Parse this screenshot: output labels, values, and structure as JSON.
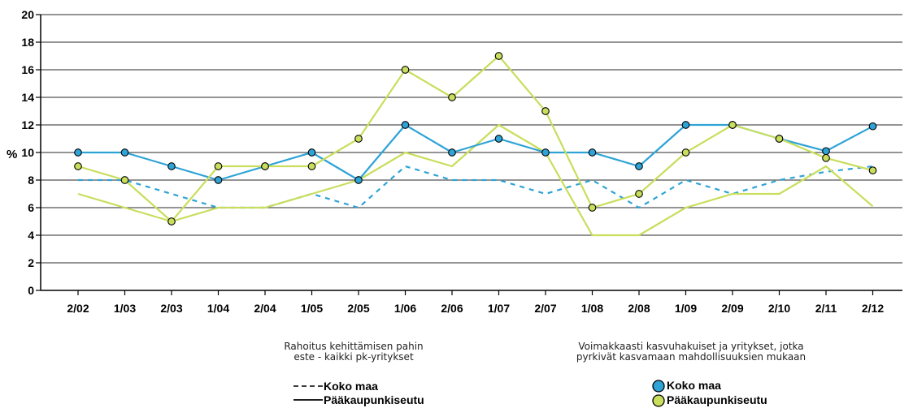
{
  "chart_data": {
    "type": "line",
    "categories": [
      "2/02",
      "1/03",
      "2/03",
      "1/04",
      "2/04",
      "1/05",
      "2/05",
      "1/06",
      "2/06",
      "1/07",
      "2/07",
      "1/08",
      "2/08",
      "1/09",
      "2/09",
      "2/10",
      "2/11",
      "2/12"
    ],
    "ylabel": "%",
    "ylim": [
      0,
      20
    ],
    "yticks": [
      0,
      2,
      4,
      6,
      8,
      10,
      12,
      14,
      16,
      18,
      20
    ],
    "grid": true,
    "series": [
      {
        "name": "Koko maa",
        "group": "rahoitus",
        "style": "dashed",
        "color": "#2ea3d6",
        "values": [
          8,
          8,
          7,
          6,
          6,
          7,
          6,
          9,
          8,
          8,
          7,
          8,
          6,
          8,
          7,
          8,
          8.6,
          9
        ]
      },
      {
        "name": "Pääkaupunkiseutu",
        "group": "rahoitus",
        "style": "solid",
        "color": "#c8de5c",
        "values": [
          7,
          6,
          5,
          6,
          6,
          7,
          8,
          10,
          9,
          12,
          10,
          4,
          4,
          6,
          7,
          7,
          9,
          6.1
        ]
      },
      {
        "name": "Koko maa",
        "group": "kasvuhakuiset",
        "style": "solid-markers",
        "color": "#2ea3d6",
        "values": [
          10,
          10,
          9,
          8,
          9,
          10,
          8,
          12,
          10,
          11,
          10,
          10,
          9,
          12,
          12,
          11,
          10.1,
          11.9
        ]
      },
      {
        "name": "Pääkaupunkiseutu",
        "group": "kasvuhakuiset",
        "style": "solid-markers",
        "color": "#c8de5c",
        "values": [
          9,
          8,
          5,
          9,
          9,
          9,
          11,
          16,
          14,
          17,
          13,
          6,
          7,
          10,
          12,
          11,
          9.6,
          8.7
        ]
      }
    ]
  },
  "legend": {
    "rahoitus_title_line1": "Rahoitus kehittämisen pahin",
    "rahoitus_title_line2": "este - kaikki pk-yritykset",
    "rahoitus_item1": "Koko maa",
    "rahoitus_item2": "Pääkaupunkiseutu",
    "kasvu_title_line1": "Voimakkaasti kasvuhakuiset ja yritykset, jotka",
    "kasvu_title_line2": "pyrkivät kasvamaan mahdollisuuksien mukaan",
    "kasvu_item1": "Koko maa",
    "kasvu_item2": "Pääkaupunkiseutu"
  },
  "colors": {
    "blue": "#2ea3d6",
    "green": "#c8de5c",
    "grid": "#555555"
  }
}
